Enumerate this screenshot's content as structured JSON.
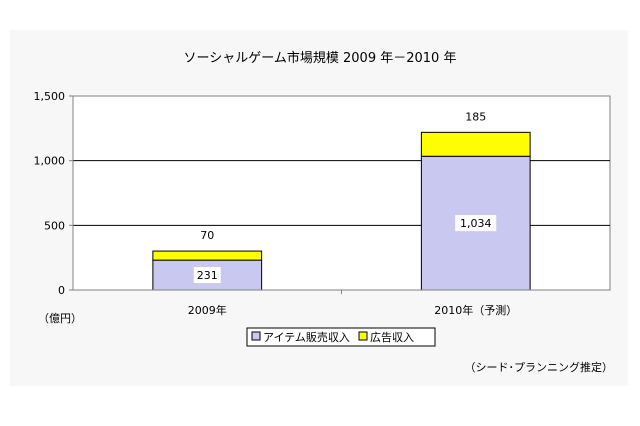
{
  "chart_data": {
    "type": "bar",
    "stacked": true,
    "title": "ソーシャルゲーム市場規模 2009 年－2010 年",
    "categories": [
      "2009年",
      "2010年（予測）"
    ],
    "series": [
      {
        "name": "アイテム販売収入",
        "color": "#c8c8f0",
        "values": [
          231,
          1034
        ],
        "value_labels": [
          "231",
          "1,034"
        ]
      },
      {
        "name": "広告収入",
        "color": "#ffff00",
        "values": [
          70,
          185
        ],
        "value_labels": [
          "70",
          "185"
        ]
      }
    ],
    "ylim": [
      0,
      1500
    ],
    "yticks": [
      0,
      500,
      1000,
      1500
    ],
    "ytick_labels": [
      "0",
      "500",
      "1,000",
      "1,500"
    ],
    "ylabel": "（億円）",
    "grid": true,
    "legend_position": "bottom"
  },
  "source_note": "（シード･プランニング推定）"
}
